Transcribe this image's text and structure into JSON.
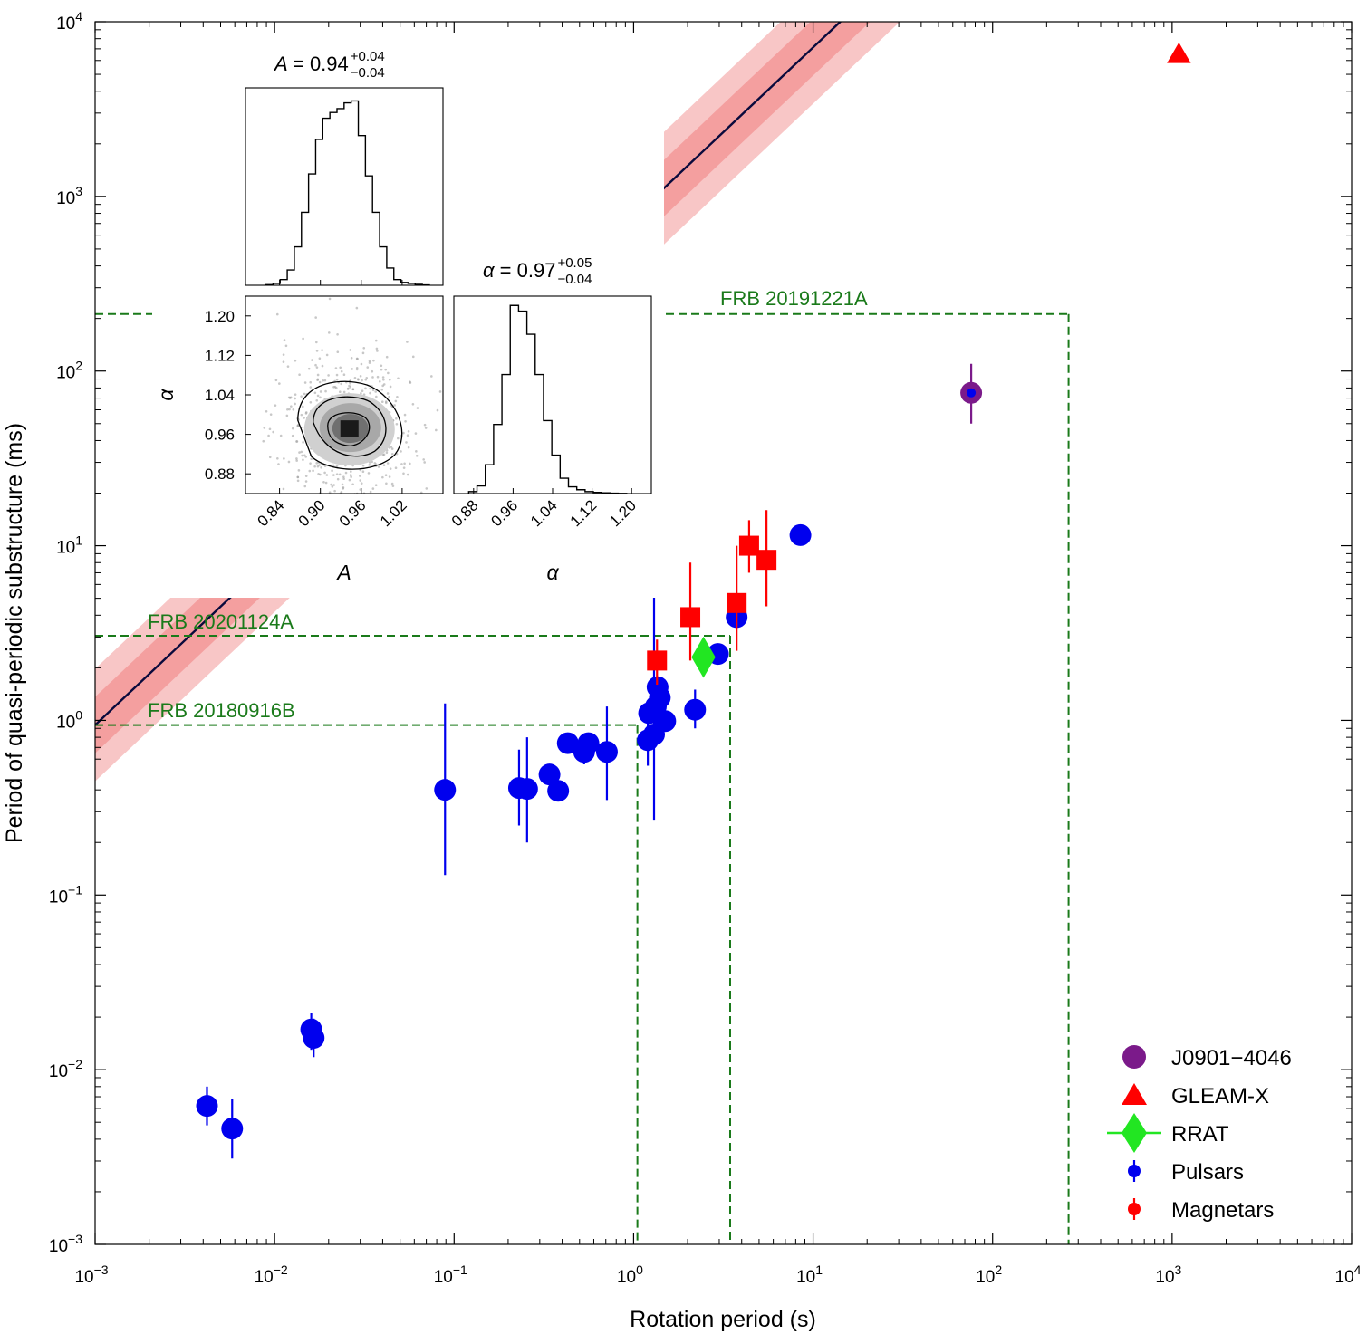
{
  "chart_data": {
    "type": "scatter",
    "xlabel": "Rotation period (s)",
    "ylabel": "Period of quasi-periodic substructure (ms)",
    "xscale": "log",
    "yscale": "log",
    "xlim": [
      0.001,
      10000
    ],
    "ylim": [
      0.001,
      10000
    ],
    "x_ticks": [
      {
        "v": 0.001,
        "base": "10",
        "exp": "−3"
      },
      {
        "v": 0.01,
        "base": "10",
        "exp": "−2"
      },
      {
        "v": 0.1,
        "base": "10",
        "exp": "−1"
      },
      {
        "v": 1,
        "base": "10",
        "exp": "0"
      },
      {
        "v": 10,
        "base": "10",
        "exp": "1"
      },
      {
        "v": 100,
        "base": "10",
        "exp": "2"
      },
      {
        "v": 1000,
        "base": "10",
        "exp": "3"
      },
      {
        "v": 10000,
        "base": "10",
        "exp": "4"
      }
    ],
    "y_ticks": [
      {
        "v": 0.001,
        "base": "10",
        "exp": "−3"
      },
      {
        "v": 0.01,
        "base": "10",
        "exp": "−2"
      },
      {
        "v": 0.1,
        "base": "10",
        "exp": "−1"
      },
      {
        "v": 1,
        "base": "10",
        "exp": "0"
      },
      {
        "v": 10,
        "base": "10",
        "exp": "1"
      },
      {
        "v": 100,
        "base": "10",
        "exp": "2"
      },
      {
        "v": 1000,
        "base": "10",
        "exp": "3"
      },
      {
        "v": 10000,
        "base": "10",
        "exp": "4"
      }
    ],
    "fit": {
      "A": 0.94,
      "alpha": 0.97,
      "band_inner_factor": 1.45,
      "band_outer_factor": 2.1,
      "color": "#0a0a3c",
      "band_color": "#f08080"
    },
    "series": [
      {
        "name": "J0901−4046",
        "marker": "circle",
        "color": "#7b1a8a",
        "points": [
          {
            "x": 76,
            "y": 75,
            "ylo": 50,
            "yhi": 110
          }
        ]
      },
      {
        "name": "GLEAM-X",
        "marker": "triangle",
        "color": "#ff0000",
        "points": [
          {
            "x": 1091,
            "y": 6500
          }
        ]
      },
      {
        "name": "RRAT",
        "marker": "diamond",
        "color": "#22e622",
        "points": [
          {
            "x": 2.45,
            "y": 2.3
          }
        ]
      },
      {
        "name": "Pulsars",
        "marker": "circle",
        "color": "#0000ee",
        "errcolor": "#0000ee",
        "points": [
          {
            "x": 0.0042,
            "y": 0.0062,
            "ylo": 0.0048,
            "yhi": 0.008
          },
          {
            "x": 0.0058,
            "y": 0.0046,
            "ylo": 0.0031,
            "yhi": 0.0068
          },
          {
            "x": 0.016,
            "y": 0.017,
            "ylo": 0.013,
            "yhi": 0.021
          },
          {
            "x": 0.0165,
            "y": 0.0152,
            "ylo": 0.0118,
            "yhi": 0.0196
          },
          {
            "x": 0.089,
            "y": 0.4,
            "ylo": 0.13,
            "yhi": 1.25
          },
          {
            "x": 0.23,
            "y": 0.41,
            "ylo": 0.25,
            "yhi": 0.68
          },
          {
            "x": 0.255,
            "y": 0.405,
            "ylo": 0.2,
            "yhi": 0.8
          },
          {
            "x": 0.34,
            "y": 0.49
          },
          {
            "x": 0.38,
            "y": 0.395
          },
          {
            "x": 0.43,
            "y": 0.74
          },
          {
            "x": 0.53,
            "y": 0.66,
            "ylo": 0.56,
            "yhi": 0.78
          },
          {
            "x": 0.56,
            "y": 0.74
          },
          {
            "x": 0.71,
            "y": 0.66,
            "ylo": 0.35,
            "yhi": 1.2
          },
          {
            "x": 1.2,
            "y": 0.77,
            "ylo": 0.55,
            "yhi": 1.0
          },
          {
            "x": 1.22,
            "y": 1.1
          },
          {
            "x": 1.3,
            "y": 0.83,
            "ylo": 0.27,
            "yhi": 5.5
          },
          {
            "x": 1.33,
            "y": 1.2
          },
          {
            "x": 1.36,
            "y": 1.55
          },
          {
            "x": 1.4,
            "y": 1.35
          },
          {
            "x": 1.5,
            "y": 0.99
          },
          {
            "x": 2.2,
            "y": 1.15,
            "ylo": 0.9,
            "yhi": 1.5
          },
          {
            "x": 2.95,
            "y": 2.4
          },
          {
            "x": 3.75,
            "y": 3.9
          },
          {
            "x": 8.5,
            "y": 11.5
          }
        ]
      },
      {
        "name": "Magnetars",
        "marker": "square",
        "color": "#ff0000",
        "errcolor": "#ff0000",
        "points": [
          {
            "x": 1.35,
            "y": 2.2,
            "ylo": 1.6,
            "yhi": 2.9
          },
          {
            "x": 2.07,
            "y": 3.9,
            "ylo": 2.2,
            "yhi": 8.0
          },
          {
            "x": 3.75,
            "y": 4.7,
            "ylo": 2.5,
            "yhi": 10
          },
          {
            "x": 4.4,
            "y": 10,
            "ylo": 7,
            "yhi": 14
          },
          {
            "x": 5.5,
            "y": 8.3,
            "ylo": 4.5,
            "yhi": 16
          }
        ]
      }
    ],
    "frb_lines": [
      {
        "label": "FRB 20191221A",
        "x": 265,
        "y": 212
      },
      {
        "label": "FRB 20201124A",
        "x": 3.45,
        "y": 3.05
      },
      {
        "label": "FRB 20180916B",
        "x": 1.05,
        "y": 0.94
      }
    ],
    "legend": {
      "placement": "bottom-right",
      "entries": [
        "J0901−4046",
        "GLEAM-X",
        "RRAT",
        "Pulsars",
        "Magnetars"
      ]
    },
    "inset": {
      "A_title": {
        "prefix": "A",
        "value": "= 0.94",
        "sup": "+0.04",
        "sub": "−0.04"
      },
      "alpha_title": {
        "prefix": "α",
        "value": "= 0.97",
        "sup": "+0.05",
        "sub": "−0.04"
      },
      "A_label": "A",
      "alpha_label": "α",
      "A_ticks": [
        "0.84",
        "0.90",
        "0.96",
        "1.02"
      ],
      "A_tick_values": [
        0.84,
        0.9,
        0.96,
        1.02
      ],
      "A_range": [
        0.79,
        1.08
      ],
      "alpha_ticks": [
        "0.88",
        "0.96",
        "1.04",
        "1.12",
        "1.20"
      ],
      "alpha_tick_values": [
        0.88,
        0.96,
        1.04,
        1.12,
        1.2
      ],
      "alpha_range": [
        0.84,
        1.24
      ],
      "A_hist": [
        0.003,
        0.01,
        0.03,
        0.08,
        0.2,
        0.38,
        0.58,
        0.76,
        0.87,
        0.9,
        0.92,
        0.95,
        0.96,
        0.78,
        0.57,
        0.38,
        0.2,
        0.09,
        0.03,
        0.015,
        0.01,
        0.005,
        0.002
      ],
      "A_hist_range": [
        0.82,
        1.06
      ],
      "alpha_hist": [
        0.01,
        0.04,
        0.15,
        0.36,
        0.62,
        0.98,
        0.95,
        0.83,
        0.62,
        0.38,
        0.2,
        0.08,
        0.035,
        0.02,
        0.01,
        0.006,
        0.004,
        0.002,
        0.001
      ],
      "alpha_hist_range": [
        0.87,
        1.19
      ]
    }
  }
}
